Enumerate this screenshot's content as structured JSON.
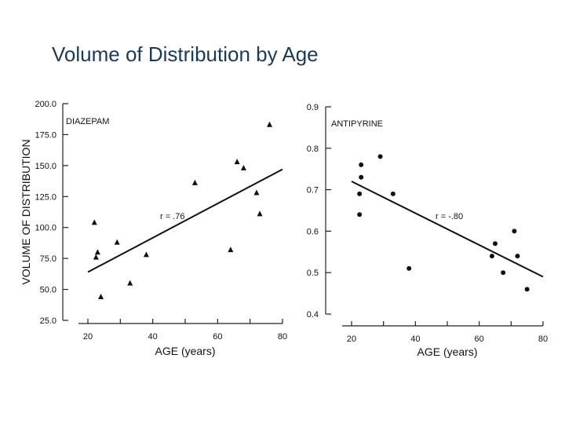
{
  "slide": {
    "title": "Volume of Distribution by Age"
  },
  "shared_ylabel": "VOLUME OF DISTRIBUTION",
  "chart_data": [
    {
      "type": "scatter",
      "title": "DIAZEPAM",
      "xlabel": "AGE (years)",
      "ylabel": "VOLUME OF DISTRIBUTION",
      "xlim": [
        20,
        80
      ],
      "ylim": [
        25,
        200
      ],
      "xticks": [
        20,
        40,
        60,
        80
      ],
      "yticks": [
        25,
        50,
        75,
        100,
        125,
        150,
        175,
        200
      ],
      "ytick_labels": [
        "25.0",
        "50.0",
        "75.0",
        "100.0",
        "125.0",
        "150.0",
        "175.0",
        "200.0"
      ],
      "marker": "triangle",
      "points": [
        {
          "x": 22,
          "y": 104
        },
        {
          "x": 23,
          "y": 80
        },
        {
          "x": 22.5,
          "y": 76
        },
        {
          "x": 24,
          "y": 44
        },
        {
          "x": 29,
          "y": 88
        },
        {
          "x": 33,
          "y": 55
        },
        {
          "x": 38,
          "y": 78
        },
        {
          "x": 53,
          "y": 136
        },
        {
          "x": 64,
          "y": 82
        },
        {
          "x": 66,
          "y": 153
        },
        {
          "x": 68,
          "y": 148
        },
        {
          "x": 72,
          "y": 128
        },
        {
          "x": 73,
          "y": 111
        },
        {
          "x": 76,
          "y": 183
        }
      ],
      "regression": {
        "x": [
          20,
          80
        ],
        "y": [
          64,
          147
        ]
      },
      "annotation": "r = .76"
    },
    {
      "type": "scatter",
      "title": "ANTIPYRINE",
      "xlabel": "AGE (years)",
      "ylabel": "",
      "xlim": [
        20,
        80
      ],
      "ylim": [
        0.4,
        0.9
      ],
      "xticks": [
        20,
        40,
        60,
        80
      ],
      "yticks": [
        0.4,
        0.5,
        0.6,
        0.7,
        0.8,
        0.9
      ],
      "ytick_labels": [
        "0.4",
        "0.5",
        "0.6",
        "0.7",
        "0.8",
        "0.9"
      ],
      "marker": "circle",
      "points": [
        {
          "x": 23,
          "y": 0.76
        },
        {
          "x": 23,
          "y": 0.73
        },
        {
          "x": 22.5,
          "y": 0.69
        },
        {
          "x": 22.5,
          "y": 0.64
        },
        {
          "x": 29,
          "y": 0.78
        },
        {
          "x": 33,
          "y": 0.69
        },
        {
          "x": 38,
          "y": 0.51
        },
        {
          "x": 64,
          "y": 0.54
        },
        {
          "x": 65,
          "y": 0.57
        },
        {
          "x": 67.5,
          "y": 0.5
        },
        {
          "x": 71,
          "y": 0.6
        },
        {
          "x": 72,
          "y": 0.54
        },
        {
          "x": 75,
          "y": 0.46
        }
      ],
      "regression": {
        "x": [
          20,
          80
        ],
        "y": [
          0.72,
          0.49
        ]
      },
      "annotation": "r = -.80"
    }
  ]
}
